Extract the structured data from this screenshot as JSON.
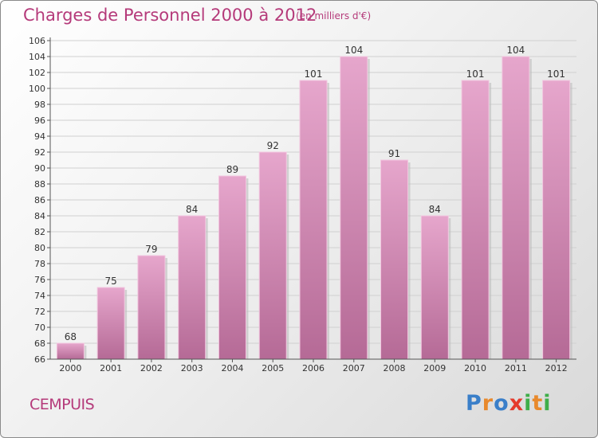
{
  "header": {
    "title": "Charges de Personnel 2000 à 2012",
    "subtitle": "(en milliers d'€)"
  },
  "footer": {
    "commune": "CEMPUIS",
    "logo_text": "Proxiti",
    "logo_colors": [
      "#3a7fc9",
      "#e8892c",
      "#3a7fc9",
      "#e53a2c",
      "#3fae49",
      "#e8892c",
      "#3fae49"
    ]
  },
  "colors": {
    "bar": "#c97aa8",
    "bar_light": "#e6a6cc",
    "accent": "#b53a7a"
  },
  "chart_data": {
    "type": "bar",
    "categories": [
      "2000",
      "2001",
      "2002",
      "2003",
      "2004",
      "2005",
      "2006",
      "2007",
      "2008",
      "2009",
      "2010",
      "2011",
      "2012"
    ],
    "values": [
      68,
      75,
      79,
      84,
      89,
      92,
      101,
      104,
      91,
      84,
      101,
      104,
      101
    ],
    "ylim": [
      66,
      106
    ],
    "yticks": [
      66,
      68,
      70,
      72,
      74,
      76,
      78,
      80,
      82,
      84,
      86,
      88,
      90,
      92,
      94,
      96,
      98,
      100,
      102,
      104,
      106
    ],
    "grid": true
  }
}
